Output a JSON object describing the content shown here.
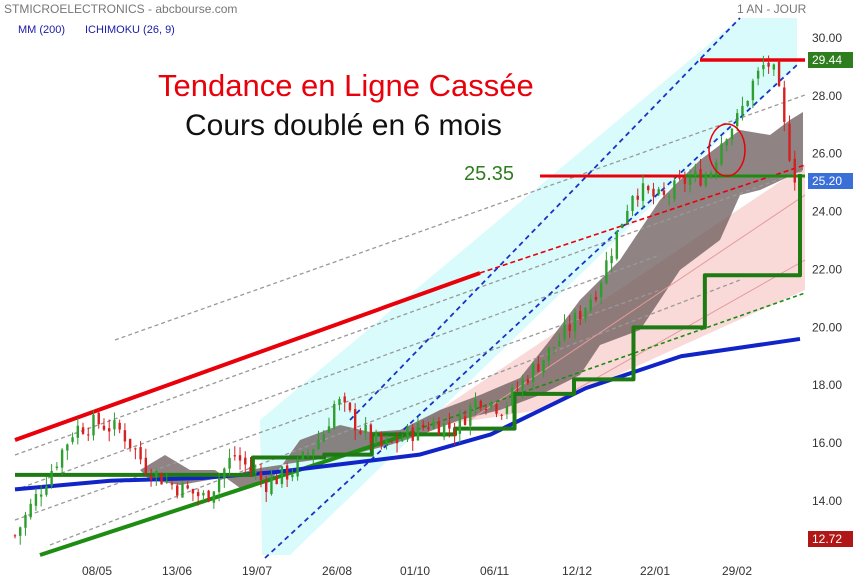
{
  "header": {
    "title": "STMICROELECTRONICS - abcbourse.com",
    "period": "1 AN - JOUR"
  },
  "legend": {
    "ma": "MM (200)",
    "ichimoku": "ICHIMOKU (26, 9)"
  },
  "annotations": {
    "title": "Tendance en Ligne Cassée",
    "subtitle": "Cours doublé en 6 mois",
    "level": "25.35"
  },
  "price_labels": {
    "high": "29.44",
    "last": "25.20",
    "low": "12.72"
  },
  "colors": {
    "high_label_bg": "#2e7d1e",
    "last_label_bg": "#3a6fd8",
    "low_label_bg": "#b01818",
    "title": "#e8000b",
    "level": "#2e7d1e",
    "ma200": "#1024c8",
    "kijun": "#1e7a12",
    "cloud": "#7a6a6a",
    "up_candle": "#2e9e2e",
    "down_candle": "#d42020"
  },
  "chart_data": {
    "type": "candlestick",
    "title": "STMICROELECTRONICS",
    "period": "1 AN - JOUR",
    "ylim": [
      12.2,
      30.6
    ],
    "y_ticks": [
      "30.00",
      "28.00",
      "26.00",
      "24.00",
      "22.00",
      "20.00",
      "18.00",
      "16.00",
      "14.00"
    ],
    "x_ticks": [
      "08/05",
      "13/06",
      "19/07",
      "26/08",
      "01/10",
      "06/11",
      "12/12",
      "22/01",
      "29/02"
    ],
    "price_series": {
      "name": "STMICROELECTRONICS",
      "points": [
        [
          0,
          12.8
        ],
        [
          12,
          14.6
        ],
        [
          25,
          16.5
        ],
        [
          35,
          16.7
        ],
        [
          45,
          16.4
        ],
        [
          55,
          15.2
        ],
        [
          65,
          14.6
        ],
        [
          80,
          14.1
        ],
        [
          92,
          15.6
        ],
        [
          105,
          14.6
        ],
        [
          118,
          15.1
        ],
        [
          130,
          16.4
        ],
        [
          135,
          17.5
        ],
        [
          145,
          16.5
        ],
        [
          155,
          15.8
        ],
        [
          165,
          16.3
        ],
        [
          175,
          16.7
        ],
        [
          185,
          16.5
        ],
        [
          195,
          17.6
        ],
        [
          205,
          17.2
        ],
        [
          215,
          18.3
        ],
        [
          225,
          19.2
        ],
        [
          235,
          20.2
        ],
        [
          245,
          21.4
        ],
        [
          252,
          23.0
        ],
        [
          260,
          24.8
        ],
        [
          272,
          24.4
        ],
        [
          282,
          25.1
        ],
        [
          292,
          25.3
        ],
        [
          298,
          26.7
        ],
        [
          304,
          27.2
        ],
        [
          310,
          28.4
        ],
        [
          316,
          29.2
        ],
        [
          320,
          28.6
        ],
        [
          324,
          26.6
        ],
        [
          328,
          25.2
        ]
      ]
    },
    "ma200": {
      "name": "MM (200)",
      "points": [
        [
          0,
          14.4
        ],
        [
          40,
          14.7
        ],
        [
          80,
          14.8
        ],
        [
          110,
          15.0
        ],
        [
          140,
          15.3
        ],
        [
          170,
          15.6
        ],
        [
          200,
          16.3
        ],
        [
          240,
          17.9
        ],
        [
          280,
          19.0
        ],
        [
          330,
          19.6
        ]
      ]
    },
    "kijun": {
      "name": "ICHIMOKU (26, 9)",
      "points": [
        [
          0,
          14.9
        ],
        [
          20,
          14.9
        ],
        [
          40,
          14.9
        ],
        [
          70,
          14.9
        ],
        [
          100,
          15.5
        ],
        [
          130,
          15.6
        ],
        [
          150,
          16.3
        ],
        [
          185,
          16.5
        ],
        [
          210,
          17.7
        ],
        [
          235,
          18.2
        ],
        [
          260,
          20.0
        ],
        [
          290,
          21.8
        ],
        [
          330,
          25.3
        ]
      ]
    },
    "levels": [
      29.44,
      25.2,
      12.72
    ],
    "horizontal_level_label": "25.35"
  }
}
